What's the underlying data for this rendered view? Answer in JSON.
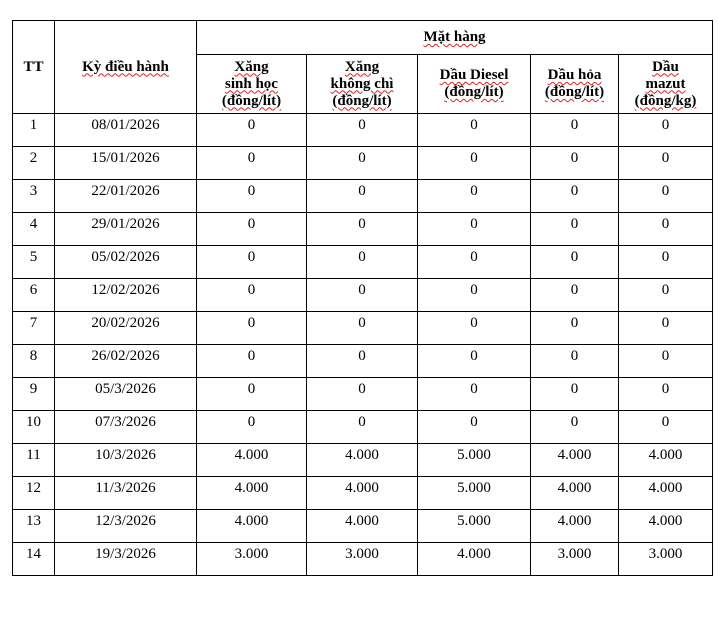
{
  "headers": {
    "tt": "TT",
    "period": "Kỳ điều hành",
    "group": "Mặt hàng",
    "cols": [
      [
        "Xăng",
        "sinh học",
        "(đồng/lít)"
      ],
      [
        "Xăng",
        "không chì",
        "(đồng/lít)"
      ],
      [
        "Dầu Diesel",
        "(đồng/lít)"
      ],
      [
        "Dầu hỏa",
        "(đồng/lít)"
      ],
      [
        "Dầu",
        "mazut",
        "(đồng/kg)"
      ]
    ]
  },
  "rows": [
    [
      "1",
      "08/01/2026",
      "0",
      "0",
      "0",
      "0",
      "0"
    ],
    [
      "2",
      "15/01/2026",
      "0",
      "0",
      "0",
      "0",
      "0"
    ],
    [
      "3",
      "22/01/2026",
      "0",
      "0",
      "0",
      "0",
      "0"
    ],
    [
      "4",
      "29/01/2026",
      "0",
      "0",
      "0",
      "0",
      "0"
    ],
    [
      "5",
      "05/02/2026",
      "0",
      "0",
      "0",
      "0",
      "0"
    ],
    [
      "6",
      "12/02/2026",
      "0",
      "0",
      "0",
      "0",
      "0"
    ],
    [
      "7",
      "20/02/2026",
      "0",
      "0",
      "0",
      "0",
      "0"
    ],
    [
      "8",
      "26/02/2026",
      "0",
      "0",
      "0",
      "0",
      "0"
    ],
    [
      "9",
      "05/3/2026",
      "0",
      "0",
      "0",
      "0",
      "0"
    ],
    [
      "10",
      "07/3/2026",
      "0",
      "0",
      "0",
      "0",
      "0"
    ],
    [
      "11",
      "10/3/2026",
      "4.000",
      "4.000",
      "5.000",
      "4.000",
      "4.000"
    ],
    [
      "12",
      "11/3/2026",
      "4.000",
      "4.000",
      "5.000",
      "4.000",
      "4.000"
    ],
    [
      "13",
      "12/3/2026",
      "4.000",
      "4.000",
      "5.000",
      "4.000",
      "4.000"
    ],
    [
      "14",
      "19/3/2026",
      "3.000",
      "3.000",
      "4.000",
      "3.000",
      "3.000"
    ]
  ]
}
